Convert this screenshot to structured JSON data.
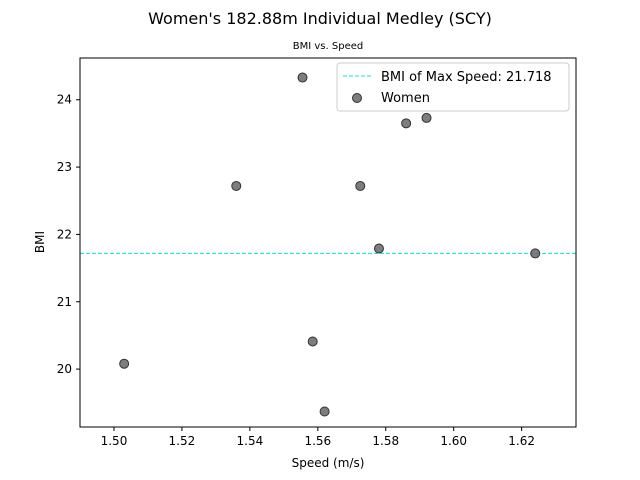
{
  "chart_data": {
    "type": "scatter",
    "title": "Women's 182.88m Individual Medley (SCY)",
    "subtitle": "BMI vs. Speed",
    "xlabel": "Speed (m/s)",
    "ylabel": "BMI",
    "xlim": [
      1.49,
      1.636
    ],
    "ylim": [
      19.14,
      24.62
    ],
    "xticks": [
      1.5,
      1.52,
      1.54,
      1.56,
      1.58,
      1.6,
      1.62
    ],
    "xtick_labels": [
      "1.50",
      "1.52",
      "1.54",
      "1.56",
      "1.58",
      "1.60",
      "1.62"
    ],
    "yticks": [
      20,
      21,
      22,
      23,
      24
    ],
    "ytick_labels": [
      "20",
      "21",
      "22",
      "23",
      "24"
    ],
    "grid": false,
    "legend_position": "top-right",
    "series": [
      {
        "name": "Women",
        "color": "#666666",
        "x": [
          1.503,
          1.536,
          1.5555,
          1.5585,
          1.562,
          1.5725,
          1.578,
          1.586,
          1.592,
          1.624
        ],
        "y": [
          20.08,
          22.72,
          24.33,
          20.41,
          19.37,
          22.72,
          21.79,
          23.65,
          23.73,
          21.718
        ]
      }
    ],
    "reference_line": {
      "label": "BMI of Max Speed: 21.718",
      "y": 21.718,
      "color": "#00e5e5",
      "style": "dashed"
    }
  }
}
